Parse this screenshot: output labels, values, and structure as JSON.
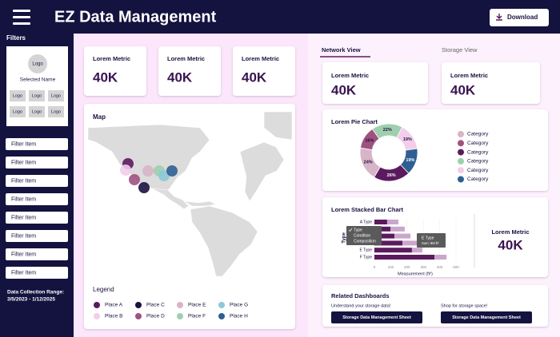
{
  "header": {
    "title": "EZ Data Management",
    "download": "Download"
  },
  "sidebar": {
    "title": "Filters",
    "logo": "Logo",
    "selected_name": "Selected Name",
    "logos": [
      "Logo",
      "Logo",
      "Logo",
      "Logo",
      "Logo",
      "Logo"
    ],
    "filters": [
      "Filter Item",
      "Filter Item",
      "Filter Item",
      "Filter Item",
      "Filter Item",
      "Filter Item",
      "Filter Item",
      "Filter Item"
    ],
    "date_range": [
      "Data Collection Range:",
      "3/5/2023 - 1/12/2025"
    ]
  },
  "metrics": [
    {
      "label": "Lorem Metric",
      "value": "40K"
    },
    {
      "label": "Lorem Metric",
      "value": "40K"
    },
    {
      "label": "Lorem Metric",
      "value": "40K"
    }
  ],
  "map": {
    "title": "Map",
    "legend_title": "Legend",
    "places": [
      {
        "name": "Place A",
        "color": "#5c1a5e"
      },
      {
        "name": "Place B",
        "color": "#f3cdea"
      },
      {
        "name": "Place C",
        "color": "#1a1240"
      },
      {
        "name": "Place D",
        "color": "#a0527f"
      },
      {
        "name": "Place E",
        "color": "#d8b4c8"
      },
      {
        "name": "Place F",
        "color": "#9fcfae"
      },
      {
        "name": "Place G",
        "color": "#8ec8d8"
      },
      {
        "name": "Place H",
        "color": "#2f5f92"
      }
    ]
  },
  "tabs": [
    "Network View",
    "Storage View"
  ],
  "network_metrics": [
    {
      "label": "Lorem Metric",
      "value": "40K"
    },
    {
      "label": "Lorem Metric",
      "value": "40K"
    }
  ],
  "pie_chart": {
    "type": "pie",
    "title": "Lorem Pie Chart",
    "values": [
      22,
      19,
      19,
      26,
      24,
      16
    ],
    "value_labels": [
      "22%",
      "19%",
      "19%",
      "26%",
      "24%",
      "16%"
    ],
    "colors": [
      "#9fcfae",
      "#f3cdea",
      "#2f5f92",
      "#5c1a5e",
      "#d8b4c8",
      "#a0527f"
    ],
    "legend": [
      {
        "label": "Category",
        "color": "#d8b4c8"
      },
      {
        "label": "Category",
        "color": "#a0527f"
      },
      {
        "label": "Category",
        "color": "#5c1a5e"
      },
      {
        "label": "Category",
        "color": "#9fcfae"
      },
      {
        "label": "Category",
        "color": "#f3cdea"
      },
      {
        "label": "Category",
        "color": "#2f5f92"
      }
    ]
  },
  "stacked_bar_chart": {
    "type": "bar",
    "orientation": "horizontal",
    "stacked": true,
    "title": "Lorem Stacked Bar Chart",
    "y_label": "Type",
    "x_label": "Measurement (ft²)",
    "categories": [
      "A Type",
      null,
      null,
      null,
      "E Type",
      "F Type"
    ],
    "series": [
      {
        "color": "#5c1a5e",
        "values": [
          78,
          98,
          123,
          172,
          230,
          368
        ]
      },
      {
        "color": "#c9a6cc",
        "values": [
          69,
          88,
          98,
          123,
          64,
          74
        ]
      }
    ],
    "xlim": [
      0,
      500
    ],
    "xticks": [
      0,
      100,
      200,
      300,
      400,
      500
    ],
    "dropdown": {
      "options": [
        "Type",
        "Condition",
        "Composition"
      ],
      "selected": 0
    },
    "tooltip": {
      "title": "E Type",
      "text": "Sum: 9M ft²"
    }
  },
  "side_metric": {
    "label": "Lorem Metric",
    "value": "40K"
  },
  "related": {
    "title": "Related Dashboards",
    "items": [
      {
        "text": "Understand your storage data!",
        "button": "Storage Data Management Sheet"
      },
      {
        "text": "Shop for storage space!",
        "button": "Storage Data Management Sheet"
      }
    ]
  }
}
